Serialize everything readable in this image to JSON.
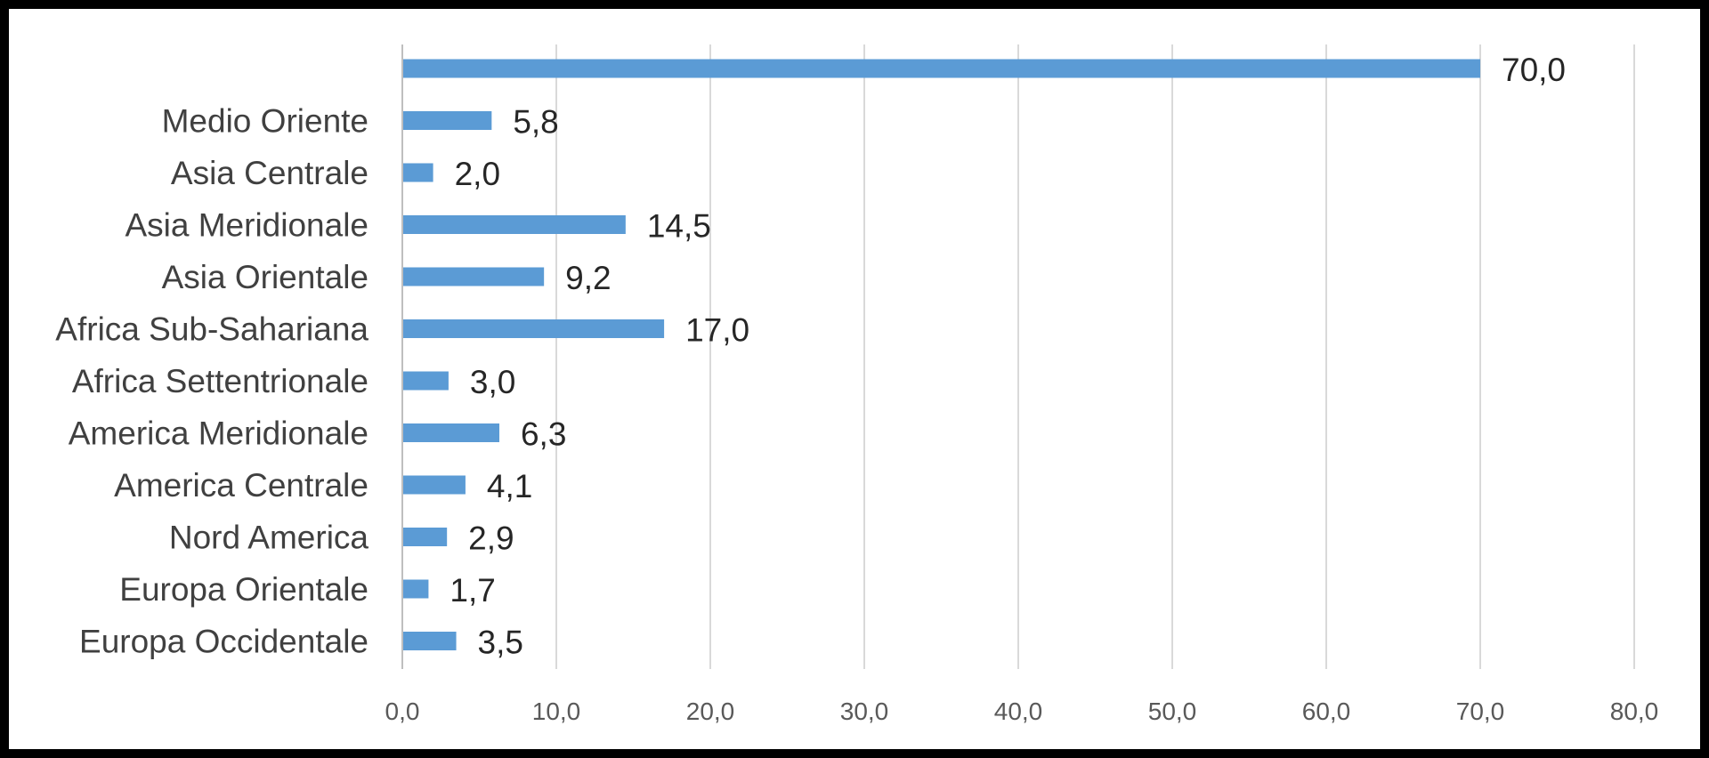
{
  "chart_data": {
    "type": "bar",
    "orientation": "horizontal",
    "title": "",
    "xlabel": "",
    "ylabel": "",
    "categories": [
      "",
      "Medio Oriente",
      "Asia Centrale",
      "Asia Meridionale",
      "Asia Orientale",
      "Africa Sub-Sahariana",
      "Africa Settentrionale",
      "America Meridionale",
      "America Centrale",
      "Nord America",
      "Europa Orientale",
      "Europa Occidentale"
    ],
    "values": [
      70.0,
      5.8,
      2.0,
      14.5,
      9.2,
      17.0,
      3.0,
      6.3,
      4.1,
      2.9,
      1.7,
      3.5
    ],
    "value_labels": [
      "70,0",
      "5,8",
      "2,0",
      "14,5",
      "9,2",
      "17,0",
      "3,0",
      "6,3",
      "4,1",
      "2,9",
      "1,7",
      "3,5"
    ],
    "xlim": [
      0,
      80
    ],
    "ticks": [
      0,
      10,
      20,
      30,
      40,
      50,
      60,
      70,
      80
    ],
    "tick_labels": [
      "0,0",
      "10,0",
      "20,0",
      "30,0",
      "40,0",
      "50,0",
      "60,0",
      "70,0",
      "80,0"
    ],
    "bar_color": "#5b9bd5",
    "grid": true,
    "legend": "none"
  }
}
